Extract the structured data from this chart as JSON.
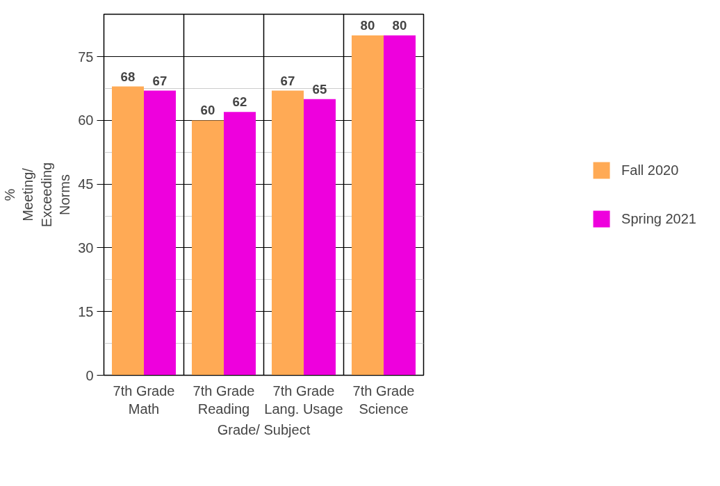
{
  "chart_data": {
    "type": "bar",
    "xlabel": "Grade/ Subject",
    "ylabel": "%\nMeeting/\nExceeding\nNorms",
    "categories": [
      "7th Grade\nMath",
      "7th Grade\nReading",
      "7th Grade\nLang. Usage",
      "7th Grade\nScience"
    ],
    "series": [
      {
        "name": "Fall 2020",
        "color": "#ffaa55",
        "values": [
          68,
          60,
          67,
          80
        ]
      },
      {
        "name": "Spring 2021",
        "color": "#ee00dd",
        "values": [
          67,
          62,
          65,
          80
        ]
      }
    ],
    "ylim": [
      0,
      85
    ],
    "yticks": [
      0,
      15,
      30,
      45,
      60,
      75
    ],
    "grid": true,
    "legend": "right",
    "data_labels": true
  }
}
